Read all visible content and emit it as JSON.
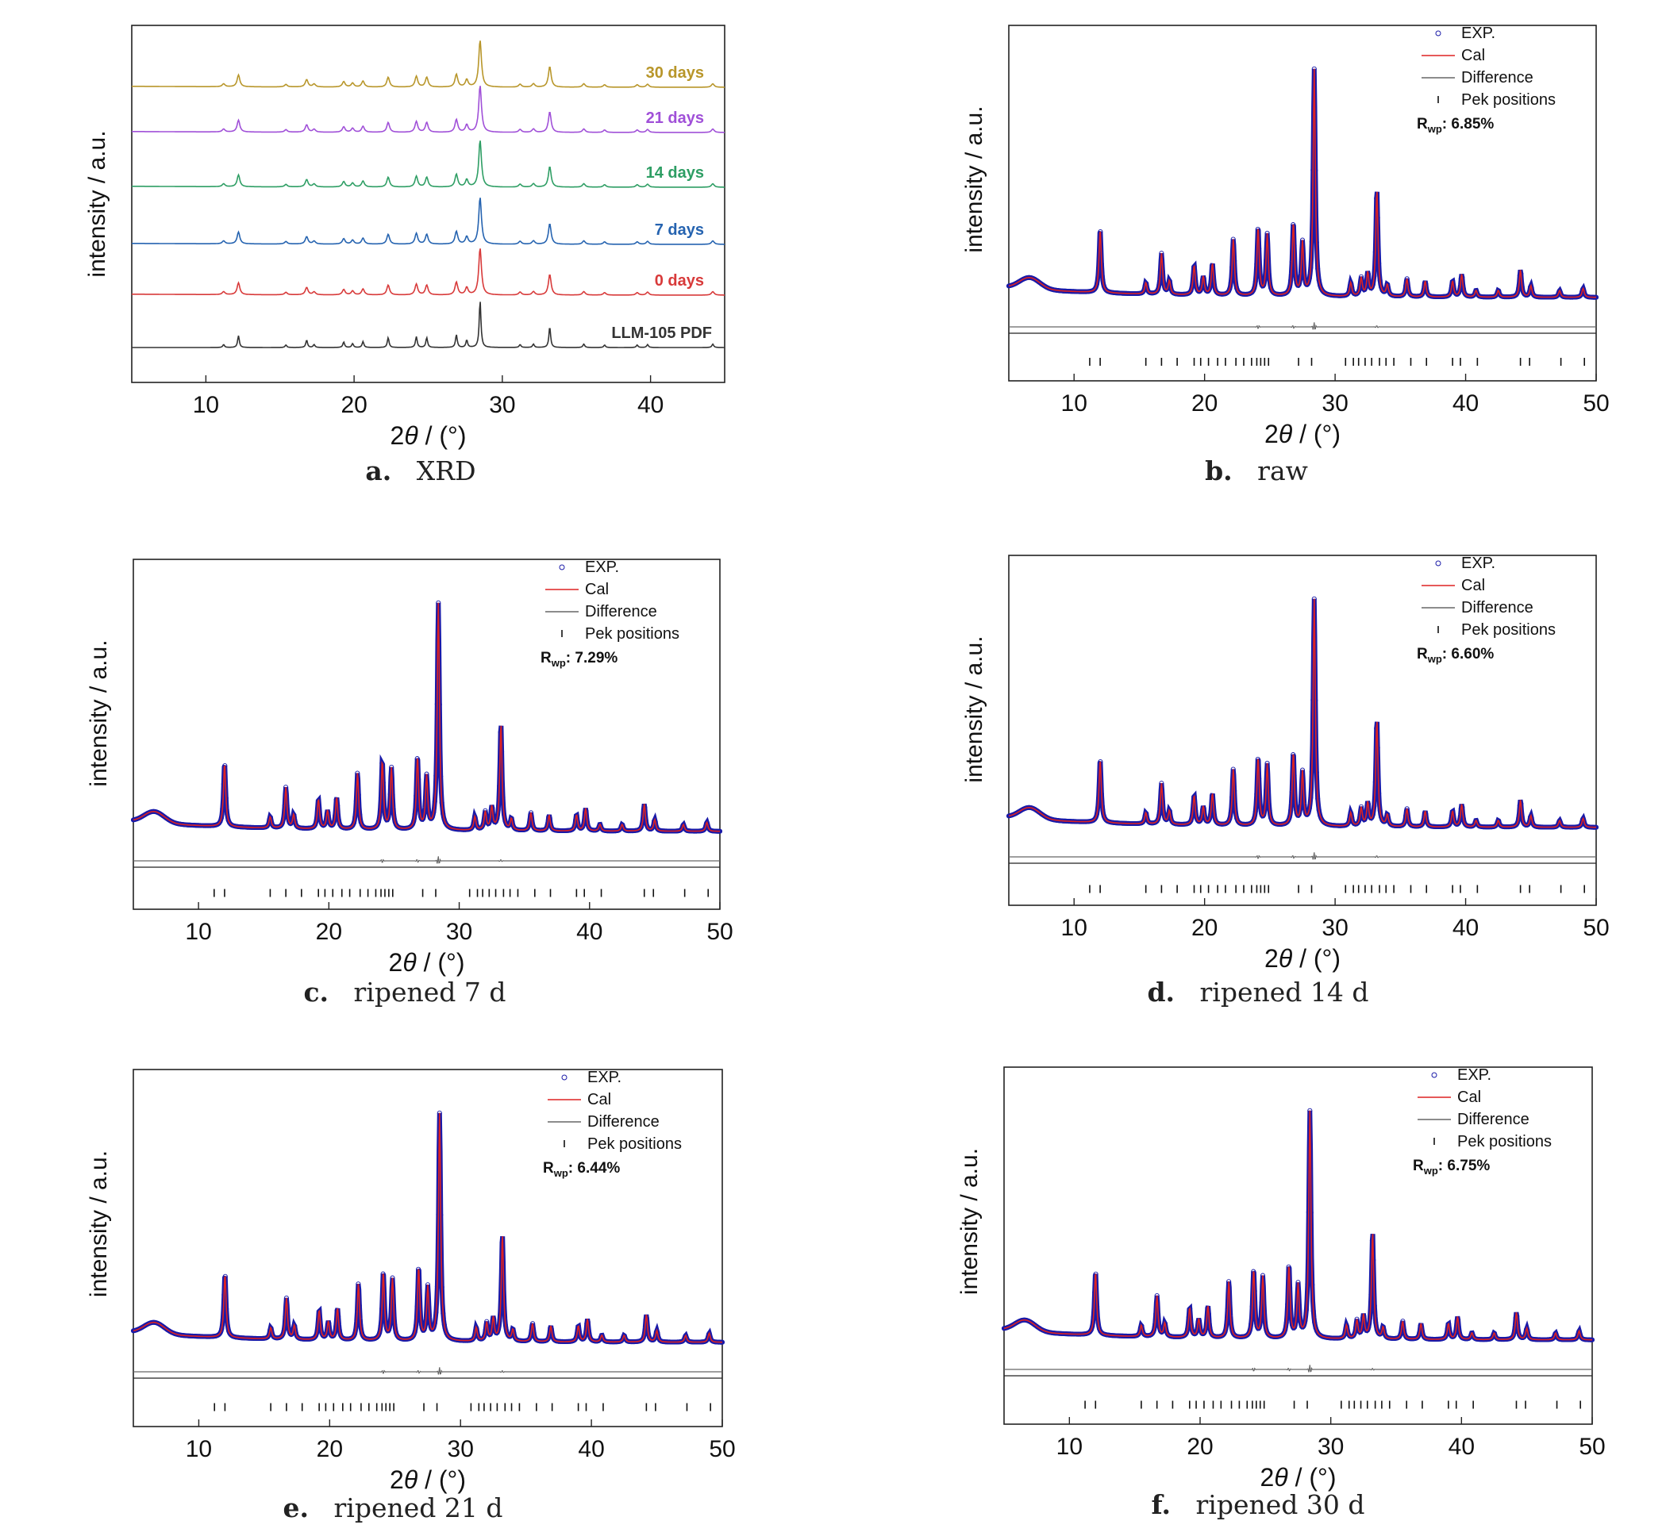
{
  "colors": {
    "frame": "#222222",
    "exp_marker": "#1a1aa8",
    "cal_line": "#dd2222",
    "difference_line": "#666666",
    "peak_tick": "#111111",
    "series_30": "#b8962a",
    "series_21": "#a050d8",
    "series_14": "#2e9e64",
    "series_7": "#2563b0",
    "series_0": "#d83a3a",
    "series_pdf": "#333333"
  },
  "chart_data": [
    {
      "id": "a",
      "type": "line",
      "caption_letter": "a.",
      "caption_text": "XRD",
      "ylabel": "intensity / a.u.",
      "xlabel_pre": "2",
      "xlabel_theta": "θ",
      "xlabel_post": " / (°)",
      "xlim": [
        5,
        45
      ],
      "xticks": [
        10,
        20,
        30,
        40
      ],
      "grid": false,
      "series": [
        {
          "name": "30 days",
          "color_key": "series_30",
          "offset": 5
        },
        {
          "name": "21 days",
          "color_key": "series_21",
          "offset": 4
        },
        {
          "name": "14 days",
          "color_key": "series_14",
          "offset": 3
        },
        {
          "name": "7 days",
          "color_key": "series_7",
          "offset": 2
        },
        {
          "name": "0 days",
          "color_key": "series_0",
          "offset": 1
        },
        {
          "name": "LLM-105 PDF",
          "color_key": "series_pdf",
          "offset": 0
        }
      ],
      "peaks": [
        {
          "x": 11.2,
          "h": 0.06
        },
        {
          "x": 12.2,
          "h": 0.24
        },
        {
          "x": 15.4,
          "h": 0.05
        },
        {
          "x": 16.8,
          "h": 0.15
        },
        {
          "x": 17.3,
          "h": 0.06
        },
        {
          "x": 19.3,
          "h": 0.11
        },
        {
          "x": 19.9,
          "h": 0.08
        },
        {
          "x": 20.6,
          "h": 0.12
        },
        {
          "x": 22.3,
          "h": 0.2
        },
        {
          "x": 24.2,
          "h": 0.22
        },
        {
          "x": 24.9,
          "h": 0.2
        },
        {
          "x": 26.9,
          "h": 0.26
        },
        {
          "x": 27.6,
          "h": 0.15
        },
        {
          "x": 28.5,
          "h": 0.95
        },
        {
          "x": 31.2,
          "h": 0.06
        },
        {
          "x": 32.1,
          "h": 0.07
        },
        {
          "x": 33.2,
          "h": 0.42
        },
        {
          "x": 35.5,
          "h": 0.07
        },
        {
          "x": 36.9,
          "h": 0.05
        },
        {
          "x": 39.1,
          "h": 0.05
        },
        {
          "x": 39.8,
          "h": 0.06
        },
        {
          "x": 44.2,
          "h": 0.07
        }
      ]
    },
    {
      "id": "b",
      "type": "line",
      "caption_letter": "b.",
      "caption_text": "raw",
      "ylabel": "intensity / a.u.",
      "xlabel_pre": "2",
      "xlabel_theta": "θ",
      "xlabel_post": " / (°)",
      "xlim": [
        5,
        50
      ],
      "xticks": [
        10,
        20,
        30,
        40,
        50
      ],
      "legend": [
        "EXP.",
        "Cal",
        "Difference",
        "Pek positions"
      ],
      "rwp_label": "R",
      "rwp_sub": "wp",
      "rwp_value": ": 6.85%",
      "grid": false
    },
    {
      "id": "c",
      "type": "line",
      "caption_letter": "c.",
      "caption_text": "ripened 7 d",
      "ylabel": "intensity / a.u.",
      "xlabel_pre": "2",
      "xlabel_theta": "θ",
      "xlabel_post": " / (°)",
      "xlim": [
        5,
        50
      ],
      "xticks": [
        10,
        20,
        30,
        40,
        50
      ],
      "legend": [
        "EXP.",
        "Cal",
        "Difference",
        "Pek positions"
      ],
      "rwp_label": "R",
      "rwp_sub": "wp",
      "rwp_value": ": 7.29%",
      "grid": false
    },
    {
      "id": "d",
      "type": "line",
      "caption_letter": "d.",
      "caption_text": "ripened 14 d",
      "ylabel": "intensity / a.u.",
      "xlabel_pre": "2",
      "xlabel_theta": "θ",
      "xlabel_post": " / (°)",
      "xlim": [
        5,
        50
      ],
      "xticks": [
        10,
        20,
        30,
        40,
        50
      ],
      "legend": [
        "EXP.",
        "Cal",
        "Difference",
        "Pek positions"
      ],
      "rwp_label": "R",
      "rwp_sub": "wp",
      "rwp_value": ": 6.60%",
      "grid": false
    },
    {
      "id": "e",
      "type": "line",
      "caption_letter": "e.",
      "caption_text": "ripened 21 d",
      "ylabel": "intensity / a.u.",
      "xlabel_pre": "2",
      "xlabel_theta": "θ",
      "xlabel_post": " / (°)",
      "xlim": [
        5,
        50
      ],
      "xticks": [
        10,
        20,
        30,
        40,
        50
      ],
      "legend": [
        "EXP.",
        "Cal",
        "Difference",
        "Pek positions"
      ],
      "rwp_label": "R",
      "rwp_sub": "wp",
      "rwp_value": ": 6.44%",
      "grid": false
    },
    {
      "id": "f",
      "type": "line",
      "caption_letter": "f.",
      "caption_text": "ripened 30 d",
      "ylabel": "intensity / a.u.",
      "xlabel_pre": "2",
      "xlabel_theta": "θ",
      "xlabel_post": " / (°)",
      "xlim": [
        5,
        50
      ],
      "xticks": [
        10,
        20,
        30,
        40,
        50
      ],
      "legend": [
        "EXP.",
        "Cal",
        "Difference",
        "Pek positions"
      ],
      "rwp_label": "R",
      "rwp_sub": "wp",
      "rwp_value": ": 6.75%",
      "grid": false
    }
  ],
  "refinement_peaks": [
    {
      "x": 12.0,
      "h": 0.28
    },
    {
      "x": 15.5,
      "h": 0.05
    },
    {
      "x": 16.7,
      "h": 0.18
    },
    {
      "x": 17.3,
      "h": 0.06
    },
    {
      "x": 19.2,
      "h": 0.13
    },
    {
      "x": 19.9,
      "h": 0.08
    },
    {
      "x": 20.6,
      "h": 0.14
    },
    {
      "x": 22.2,
      "h": 0.25
    },
    {
      "x": 24.1,
      "h": 0.3
    },
    {
      "x": 24.8,
      "h": 0.27
    },
    {
      "x": 26.8,
      "h": 0.32
    },
    {
      "x": 27.5,
      "h": 0.23
    },
    {
      "x": 28.4,
      "h": 1.0
    },
    {
      "x": 31.2,
      "h": 0.06
    },
    {
      "x": 32.0,
      "h": 0.08
    },
    {
      "x": 32.5,
      "h": 0.1
    },
    {
      "x": 33.2,
      "h": 0.47
    },
    {
      "x": 34.0,
      "h": 0.05
    },
    {
      "x": 35.5,
      "h": 0.08
    },
    {
      "x": 36.9,
      "h": 0.07
    },
    {
      "x": 39.0,
      "h": 0.07
    },
    {
      "x": 39.7,
      "h": 0.1
    },
    {
      "x": 40.8,
      "h": 0.03
    },
    {
      "x": 42.5,
      "h": 0.03
    },
    {
      "x": 44.2,
      "h": 0.12
    },
    {
      "x": 45.0,
      "h": 0.05
    },
    {
      "x": 47.2,
      "h": 0.03
    },
    {
      "x": 49.0,
      "h": 0.04
    }
  ],
  "peak_positions": [
    11.2,
    12.0,
    15.5,
    16.7,
    17.9,
    19.2,
    19.7,
    20.3,
    21.0,
    21.6,
    22.4,
    23.0,
    23.6,
    24.0,
    24.3,
    24.6,
    24.9,
    27.2,
    28.2,
    30.8,
    31.4,
    31.8,
    32.3,
    32.8,
    33.4,
    33.9,
    34.5,
    35.8,
    37.0,
    39.0,
    39.6,
    40.9,
    44.2,
    44.9,
    47.3,
    49.1
  ]
}
